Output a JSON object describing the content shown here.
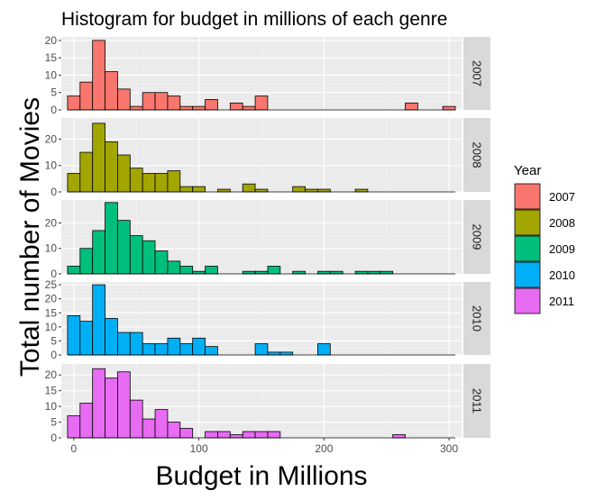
{
  "chart_data": {
    "type": "histogram",
    "title": "Histogram for budget in millions of each genre",
    "xlabel": "Budget in Millions",
    "ylabel": "Total number of Movies",
    "xlim": [
      -10,
      310
    ],
    "x_ticks": [
      0,
      100,
      200,
      300
    ],
    "bin_width": 10,
    "bin_starts": [
      -5,
      5,
      15,
      25,
      35,
      45,
      55,
      65,
      75,
      85,
      95,
      105,
      115,
      125,
      135,
      145,
      155,
      165,
      175,
      185,
      195,
      205,
      215,
      225,
      235,
      245,
      255,
      265,
      275,
      285,
      295
    ],
    "grid": true,
    "legend": {
      "title": "Year",
      "position": "right"
    },
    "panels": [
      {
        "name": "2007",
        "color": "#F8766D",
        "ylim": [
          0,
          21
        ],
        "y_ticks": [
          0,
          5,
          10,
          15,
          20
        ],
        "values": [
          4,
          8,
          20,
          11,
          6,
          1,
          5,
          5,
          4,
          1,
          1,
          3,
          0,
          2,
          1,
          4,
          0,
          0,
          0,
          0,
          0,
          0,
          0,
          0,
          0,
          0,
          0,
          2,
          0,
          0,
          1
        ]
      },
      {
        "name": "2008",
        "color": "#A3A500",
        "ylim": [
          0,
          28
        ],
        "y_ticks": [
          0,
          10,
          20
        ],
        "values": [
          7,
          15,
          26,
          19,
          14,
          9,
          7,
          7,
          8,
          2,
          2,
          0,
          1,
          0,
          3,
          1,
          0,
          0,
          2,
          1,
          1,
          0,
          0,
          1,
          0,
          0,
          0,
          0,
          0,
          0,
          0
        ]
      },
      {
        "name": "2009",
        "color": "#00BF7D",
        "ylim": [
          0,
          29
        ],
        "y_ticks": [
          0,
          10,
          20
        ],
        "values": [
          3,
          10,
          17,
          28,
          21,
          15,
          13,
          9,
          5,
          3,
          1,
          3,
          0,
          0,
          1,
          1,
          3,
          0,
          1,
          0,
          1,
          1,
          0,
          1,
          1,
          1,
          0,
          0,
          0,
          0,
          0
        ]
      },
      {
        "name": "2010",
        "color": "#00B0F6",
        "ylim": [
          0,
          26
        ],
        "y_ticks": [
          0,
          5,
          10,
          15,
          20,
          25
        ],
        "values": [
          14,
          12,
          25,
          13,
          8,
          8,
          4,
          4,
          6,
          4,
          6,
          3,
          0,
          0,
          0,
          4,
          1,
          1,
          0,
          0,
          4,
          0,
          0,
          0,
          0,
          0,
          0,
          0,
          0,
          0,
          0
        ]
      },
      {
        "name": "2011",
        "color": "#E76BF3",
        "ylim": [
          0,
          23.5
        ],
        "y_ticks": [
          0,
          5,
          10,
          15,
          20
        ],
        "values": [
          7,
          11,
          22,
          19,
          21,
          12,
          6,
          9,
          5,
          3,
          0,
          2,
          2,
          1,
          2,
          2,
          2,
          0,
          0,
          0,
          0,
          0,
          0,
          0,
          0,
          0,
          1,
          0,
          0,
          0,
          0
        ]
      }
    ]
  }
}
